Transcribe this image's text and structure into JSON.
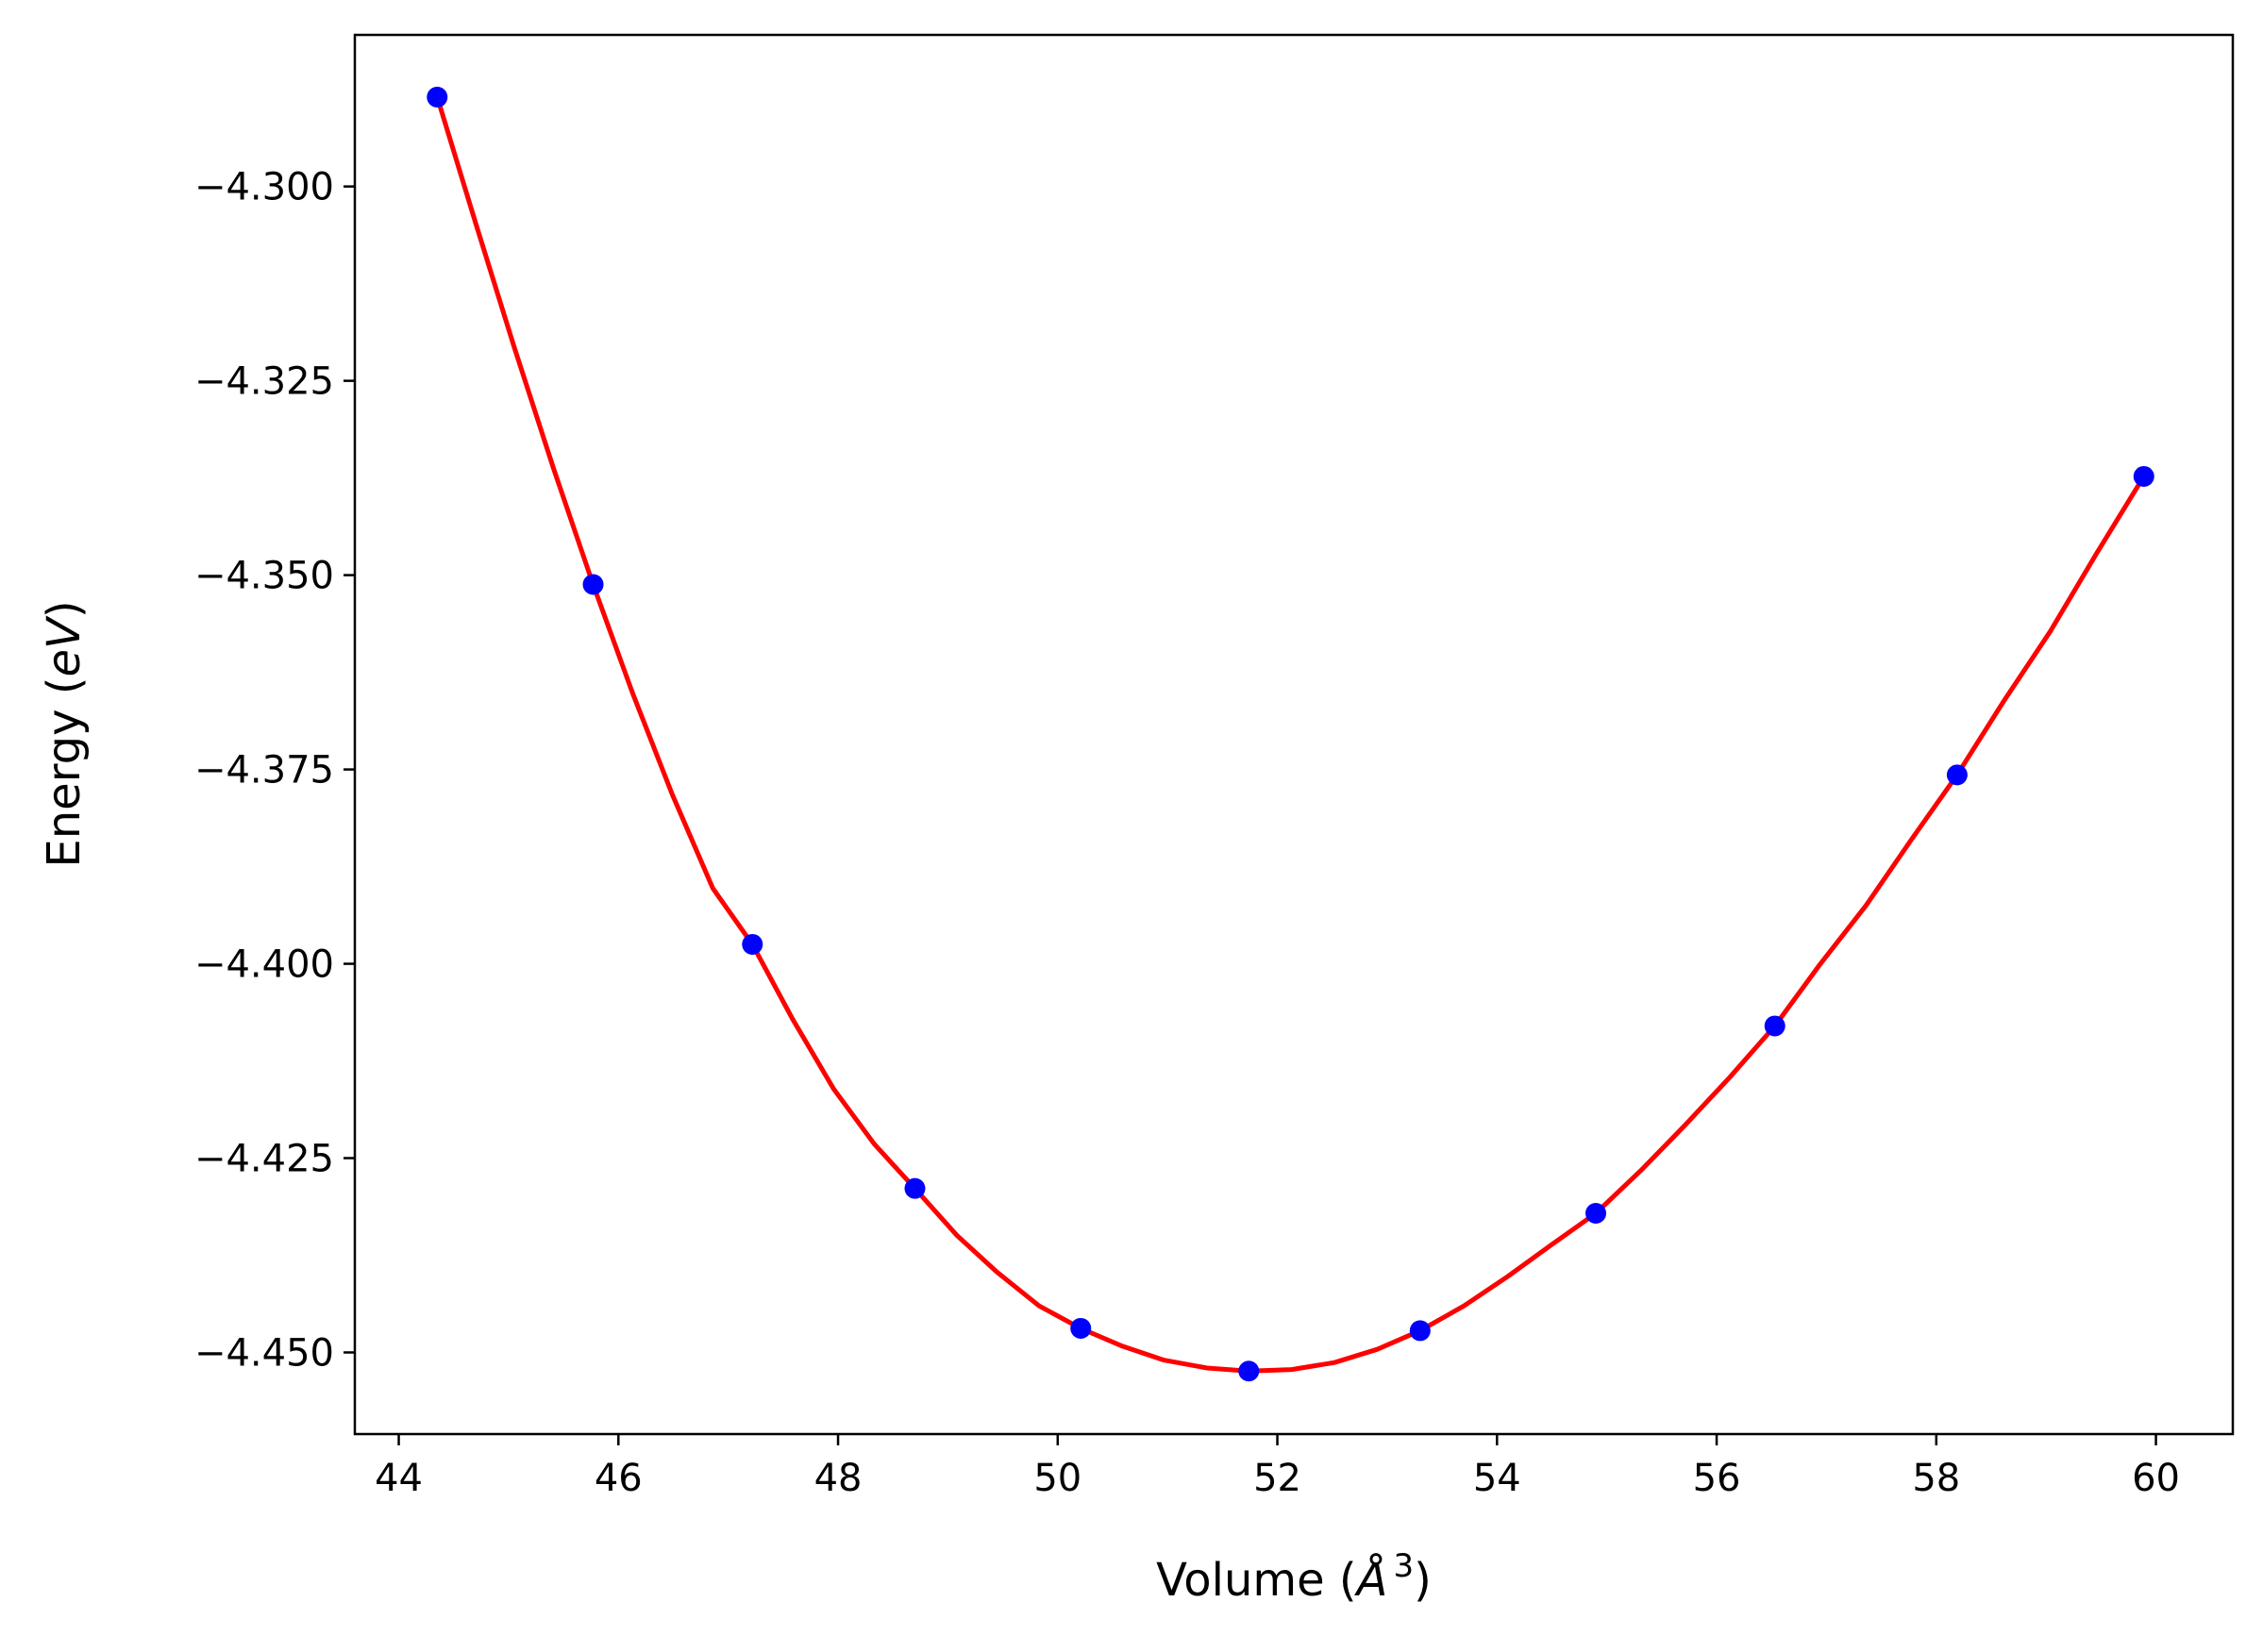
{
  "chart_data": {
    "type": "scatter",
    "title": "",
    "xlabel": {
      "prefix": "Volume (",
      "symbol": "Å",
      "superscript": "3",
      "suffix": ")"
    },
    "ylabel": {
      "prefix": "Energy (",
      "unit": "eV",
      "suffix": ")"
    },
    "xlim": [
      43.6,
      60.7
    ],
    "ylim": [
      -4.4605,
      -4.2805
    ],
    "x_ticks": [
      44,
      46,
      48,
      50,
      52,
      54,
      56,
      58,
      60
    ],
    "x_tick_labels": [
      "44",
      "46",
      "48",
      "50",
      "52",
      "54",
      "56",
      "58",
      "60"
    ],
    "y_ticks": [
      -4.3,
      -4.325,
      -4.35,
      -4.375,
      -4.4,
      -4.425,
      -4.45
    ],
    "y_tick_labels": [
      "−4.300",
      "−4.325",
      "−4.350",
      "−4.375",
      "−4.400",
      "−4.425",
      "−4.450"
    ],
    "grid": false,
    "legend": "none",
    "series": [
      {
        "kind": "points",
        "color": "#0000ff",
        "x": [
          44.35,
          45.77,
          47.22,
          48.7,
          50.21,
          51.74,
          53.3,
          54.9,
          56.53,
          58.19,
          59.89
        ],
        "y": [
          -4.2885,
          -4.3512,
          -4.3975,
          -4.4289,
          -4.4469,
          -4.4524,
          -4.4472,
          -4.4321,
          -4.408,
          -4.3757,
          -4.3373
        ]
      },
      {
        "kind": "fit-curve",
        "color": "#ff0000",
        "x": [
          44.35,
          44.7,
          45.05,
          45.41,
          45.77,
          46.13,
          46.49,
          46.86,
          47.22,
          47.59,
          47.96,
          48.33,
          48.7,
          49.08,
          49.45,
          49.83,
          50.21,
          50.59,
          50.97,
          51.36,
          51.74,
          52.13,
          52.52,
          52.91,
          53.3,
          53.7,
          54.1,
          54.5,
          54.9,
          55.31,
          55.71,
          56.12,
          56.53,
          56.94,
          57.36,
          57.77,
          58.19,
          58.61,
          59.04,
          59.46,
          59.89
        ],
        "y": [
          -4.2885,
          -4.3047,
          -4.3206,
          -4.3363,
          -4.3512,
          -4.3652,
          -4.3782,
          -4.3903,
          -4.3975,
          -4.4072,
          -4.4161,
          -4.4232,
          -4.4289,
          -4.4349,
          -4.4397,
          -4.444,
          -4.4469,
          -4.4492,
          -4.451,
          -4.452,
          -4.4524,
          -4.4522,
          -4.4513,
          -4.4496,
          -4.4472,
          -4.444,
          -4.4402,
          -4.4361,
          -4.4321,
          -4.4266,
          -4.4208,
          -4.4146,
          -4.408,
          -4.4001,
          -4.3925,
          -4.3841,
          -4.3757,
          -4.3663,
          -4.3572,
          -4.3472,
          -4.3373
        ]
      }
    ],
    "colors": {
      "axes": "#000000",
      "background": "#ffffff"
    }
  }
}
